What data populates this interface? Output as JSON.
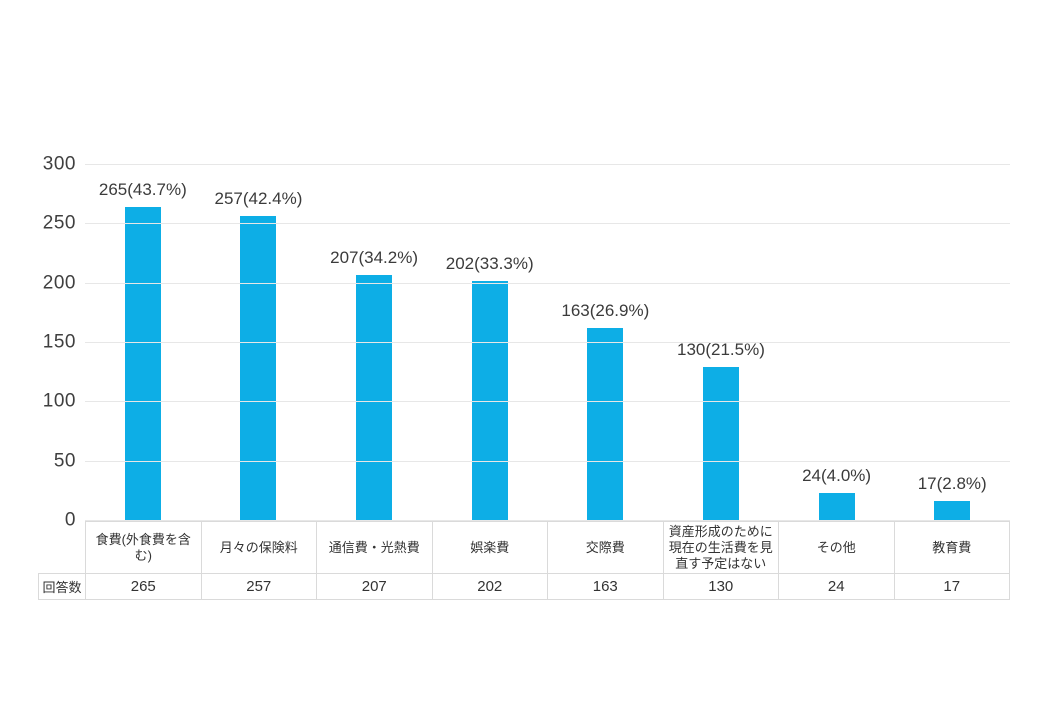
{
  "chart_data": {
    "type": "bar",
    "title": "",
    "xlabel": "",
    "ylabel": "",
    "categories": [
      "食費(外食費を含む)",
      "月々の保険料",
      "通信費・光熱費",
      "娯楽費",
      "交際費",
      "資産形成のために現在の生活費を見直す予定はない",
      "その他",
      "教育費"
    ],
    "values": [
      265,
      257,
      207,
      202,
      163,
      130,
      24,
      17
    ],
    "percentages": [
      43.7,
      42.4,
      34.2,
      33.3,
      26.9,
      21.5,
      4.0,
      2.8
    ],
    "bar_labels": [
      "265(43.7%)",
      "257(42.4%)",
      "207(34.2%)",
      "202(33.3%)",
      "163(26.9%)",
      "130(21.5%)",
      "24(4.0%)",
      "17(2.8%)"
    ],
    "yticks": [
      300,
      250,
      200,
      150,
      100,
      50,
      0
    ],
    "ylim": [
      0,
      300
    ],
    "grid": true,
    "legend": false,
    "table": {
      "row_header": "回答数",
      "row_values": [
        "265",
        "257",
        "207",
        "202",
        "163",
        "130",
        "24",
        "17"
      ]
    }
  },
  "colors": {
    "bar": "#0daee6",
    "grid": "#e7e7e7",
    "table_border": "#dadada",
    "text": "#3b3b3b"
  }
}
